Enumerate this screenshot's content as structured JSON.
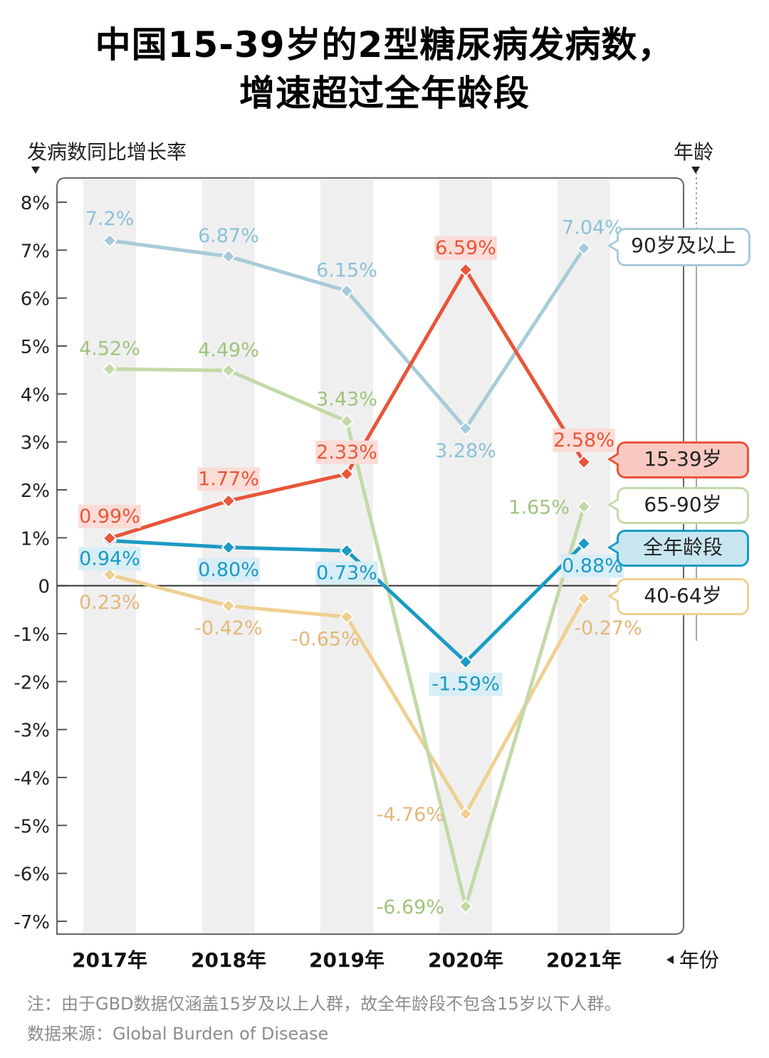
{
  "title_line1": "中国15-39岁的2型糖尿病发病数，",
  "title_line2": "增速超过全年龄段",
  "y_axis_caption": "发病数同比增长率",
  "legend_caption": "年龄",
  "x_axis_caption": "年份",
  "note": "注：由于GBD数据仅涵盖15岁及以上人群，故全年龄段不包含15岁以下人群。",
  "source": "数据来源：Global Burden of Disease",
  "chart_data": {
    "type": "line",
    "title": "中国15-39岁的2型糖尿病发病数，增速超过全年龄段",
    "xlabel": "年份",
    "ylabel": "发病数同比增长率",
    "categories": [
      "2017年",
      "2018年",
      "2019年",
      "2020年",
      "2021年"
    ],
    "ylim": [
      -7,
      8
    ],
    "yticks": [
      8,
      7,
      6,
      5,
      4,
      3,
      2,
      1,
      0,
      -1,
      -2,
      -3,
      -4,
      -5,
      -6,
      -7
    ],
    "ytick_labels": [
      "8%",
      "7%",
      "6%",
      "5%",
      "4%",
      "3%",
      "2%",
      "1%",
      "0",
      "-1%",
      "-2%",
      "-3%",
      "-4%",
      "-5%",
      "-6%",
      "-7%"
    ],
    "grid": false,
    "column_bands": true,
    "legend_placement": "right",
    "series": [
      {
        "name": "90岁及以上",
        "key": "age90",
        "color": "#a7cbd9",
        "label_color": "#8cc1d8",
        "highlight": false,
        "values": [
          7.2,
          6.87,
          6.15,
          3.28,
          7.04
        ],
        "labels": [
          "7.2%",
          "6.87%",
          "6.15%",
          "3.28%",
          "7.04%"
        ]
      },
      {
        "name": "15-39岁",
        "key": "age15",
        "color": "#e8553a",
        "label_color": "#e8553a",
        "highlight": true,
        "label_bg": "#fbdcd6",
        "values": [
          0.99,
          1.77,
          2.33,
          6.59,
          2.58
        ],
        "labels": [
          "0.99%",
          "1.77%",
          "2.33%",
          "6.59%",
          "2.58%"
        ]
      },
      {
        "name": "65-90岁",
        "key": "age65",
        "color": "#c3d9a8",
        "label_color": "#9fc47c",
        "highlight": false,
        "values": [
          4.52,
          4.49,
          3.43,
          -6.69,
          1.65
        ],
        "labels": [
          "4.52%",
          "4.49%",
          "3.43%",
          "-6.69%",
          "1.65%"
        ]
      },
      {
        "name": "全年龄段",
        "key": "all",
        "color": "#1b9ac4",
        "label_color": "#1b9ac4",
        "highlight": true,
        "label_bg": "#d8eef6",
        "values": [
          0.94,
          0.8,
          0.73,
          -1.59,
          0.88
        ],
        "labels": [
          "0.94%",
          "0.80%",
          "0.73%",
          "-1.59%",
          "0.88%"
        ]
      },
      {
        "name": "40-64岁",
        "key": "age40",
        "color": "#efd091",
        "label_color": "#e2b878",
        "highlight": false,
        "values": [
          0.23,
          -0.42,
          -0.65,
          -4.76,
          -0.27
        ],
        "labels": [
          "0.23%",
          "-0.42%",
          "-0.65%",
          "-4.76%",
          "-0.27%"
        ]
      }
    ],
    "legend": [
      {
        "label": "90岁及以上",
        "border": "#a7cbd9",
        "fill": "#ffffff"
      },
      {
        "label": "15-39岁",
        "border": "#e8553a",
        "fill": "#f8c9c0"
      },
      {
        "label": "65-90岁",
        "border": "#c3d9a8",
        "fill": "#ffffff"
      },
      {
        "label": "全年龄段",
        "border": "#1b9ac4",
        "fill": "#c8e6f0"
      },
      {
        "label": "40-64岁",
        "border": "#efd091",
        "fill": "#ffffff"
      }
    ]
  }
}
